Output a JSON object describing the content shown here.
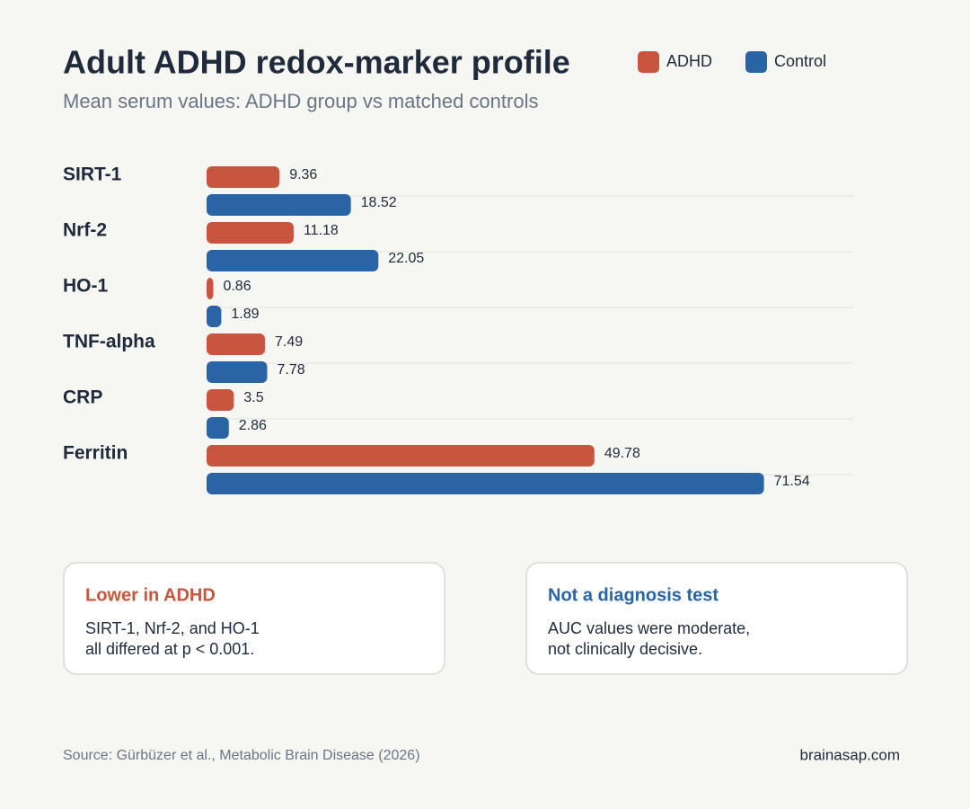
{
  "chart_data": {
    "type": "bar",
    "orientation": "horizontal",
    "title": "Adult ADHD redox-marker profile",
    "subtitle": "Mean serum values: ADHD group vs matched controls",
    "categories": [
      "SIRT-1",
      "Nrf-2",
      "HO-1",
      "TNF-alpha",
      "CRP",
      "Ferritin"
    ],
    "series": [
      {
        "name": "ADHD",
        "color": "#c8553d",
        "values": [
          9.36,
          11.18,
          0.86,
          7.49,
          3.5,
          49.78
        ]
      },
      {
        "name": "Control",
        "color": "#2a64a5",
        "values": [
          18.52,
          22.05,
          1.89,
          7.78,
          2.86,
          71.54
        ]
      }
    ],
    "xlim": [
      0,
      83
    ],
    "legend": "top-right"
  },
  "cards": [
    {
      "title": "Lower in ADHD",
      "color": "#c8553d",
      "lines": [
        "SIRT-1, Nrf-2, and HO-1",
        "all differed at p < 0.001."
      ]
    },
    {
      "title": "Not a diagnosis test",
      "color": "#2a64a5",
      "lines": [
        "AUC values were moderate,",
        "not clinically decisive."
      ]
    }
  ],
  "footer": {
    "source": "Source: Gürbüzer et al., Metabolic Brain Disease (2026)",
    "site": "brainasap.com"
  }
}
